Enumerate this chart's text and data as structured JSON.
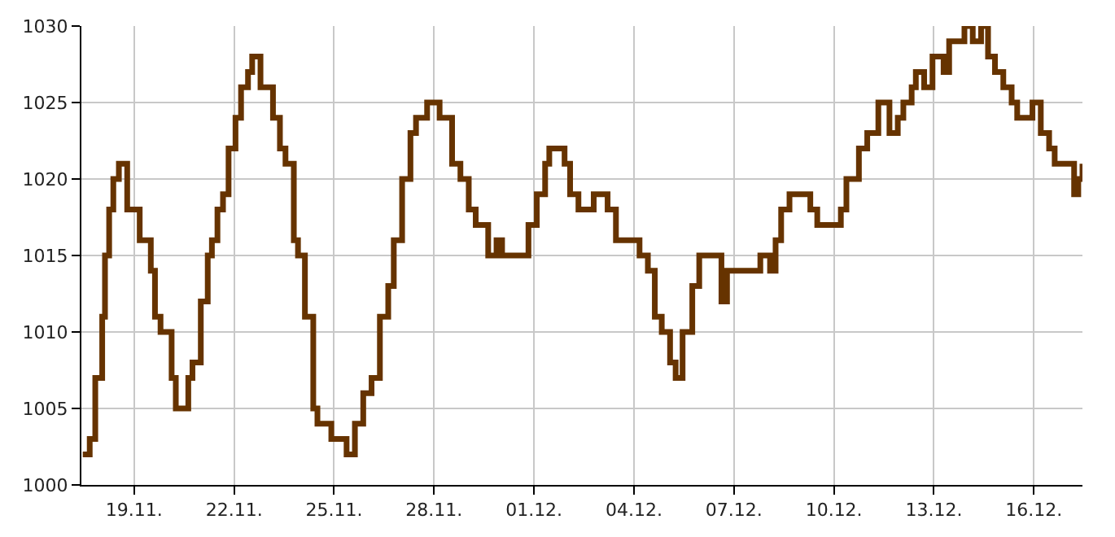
{
  "chart_data": {
    "type": "step",
    "color": "#663300",
    "grid": true,
    "marker": "none",
    "line_style": "solid",
    "x": [
      "--11-17T11:00",
      "--11-17T16:00",
      "--11-17T20:00",
      "--11-18T01:00",
      "--11-18T03:00",
      "--11-18T06:00",
      "--11-18T09:00",
      "--11-18T13:00",
      "--11-18T19:00",
      "--11-19T00:00",
      "--11-19T04:00",
      "--11-19T12:00",
      "--11-19T15:00",
      "--11-19T19:00",
      "--11-19T23:00",
      "--11-20T03:00",
      "--11-20T06:00",
      "--11-20T10:00",
      "--11-20T15:00",
      "--11-20T18:00",
      "--11-21T00:00",
      "--11-21T05:00",
      "--11-21T08:00",
      "--11-21T12:00",
      "--11-21T16:00",
      "--11-21T20:00",
      "--11-22T01:00",
      "--11-22T05:00",
      "--11-22T10:00",
      "--11-22T13:00",
      "--11-22T19:00",
      "--11-22T23:00",
      "--11-23T04:00",
      "--11-23T09:00",
      "--11-23T13:00",
      "--11-23T19:00",
      "--11-23T22:00",
      "--11-24T03:00",
      "--11-24T09:00",
      "--11-24T12:00",
      "--11-24T22:00",
      "--11-25T04:00",
      "--11-25T09:00",
      "--11-25T15:00",
      "--11-25T18:00",
      "--11-25T21:00",
      "--11-26T03:00",
      "--11-26T09:00",
      "--11-26T15:00",
      "--11-26T19:00",
      "--11-27T01:00",
      "--11-27T07:00",
      "--11-27T11:00",
      "--11-27T19:00",
      "--11-28T02:00",
      "--11-28T04:00",
      "--11-28T10:00",
      "--11-28T13:00",
      "--11-28T19:00",
      "--11-29T01:00",
      "--11-29T06:00",
      "--11-29T12:00",
      "--11-29T15:00",
      "--11-29T21:00",
      "--11-30T01:00",
      "--11-30T11:00",
      "--11-30T17:00",
      "--11-30T20:00",
      "--12-01T02:00",
      "--12-01T08:00",
      "--12-01T11:00",
      "--12-01T22:00",
      "--12-02T02:00",
      "--12-02T08:00",
      "--12-02T16:00",
      "--12-02T19:00",
      "--12-03T04:00",
      "--12-03T05:00",
      "--12-03T11:00",
      "--12-03T19:00",
      "--12-04T04:00",
      "--12-04T10:00",
      "--12-04T15:00",
      "--12-04T20:00",
      "--12-05T02:00",
      "--12-05T06:00",
      "--12-05T11:00",
      "--12-05T18:00",
      "--12-05T23:00",
      "--12-06T09:00",
      "--12-06T15:00",
      "--12-06T19:00",
      "--12-07T11:00",
      "--12-07T19:00",
      "--12-08T02:00",
      "--12-08T06:00",
      "--12-08T10:00",
      "--12-08T16:00",
      "--12-08T22:00",
      "--12-09T07:00",
      "--12-09T12:00",
      "--12-10T01:00",
      "--12-10T05:00",
      "--12-10T09:00",
      "--12-10T15:00",
      "--12-10T18:00",
      "--12-11T00:00",
      "--12-11T08:00",
      "--12-11T16:00",
      "--12-11T22:00",
      "--12-12T02:00",
      "--12-12T08:00",
      "--12-12T11:00",
      "--12-12T17:00",
      "--12-12T23:00",
      "--12-13T07:00",
      "--12-13T11:00",
      "--12-13T16:00",
      "--12-13T22:00",
      "--12-14T04:00",
      "--12-14T10:00",
      "--12-14T15:00",
      "--12-14T20:00",
      "--12-15T02:00",
      "--12-15T08:00",
      "--12-15T12:00",
      "--12-15T20:00",
      "--12-15T23:00",
      "--12-16T05:00",
      "--12-16T11:00",
      "--12-16T15:00",
      "--12-16T23:00",
      "--12-17T05:00",
      "--12-17T08:00",
      "--12-17T11:00"
    ],
    "values": [
      1002,
      1003,
      1007,
      1011,
      1015,
      1018,
      1020,
      1021,
      1018,
      1018,
      1016,
      1014,
      1011,
      1010,
      1010,
      1007,
      1005,
      1005,
      1007,
      1008,
      1012,
      1015,
      1016,
      1018,
      1019,
      1022,
      1024,
      1026,
      1027,
      1028,
      1026,
      1026,
      1024,
      1022,
      1021,
      1016,
      1015,
      1011,
      1005,
      1004,
      1003,
      1003,
      1002,
      1004,
      1004,
      1006,
      1007,
      1011,
      1013,
      1016,
      1020,
      1023,
      1024,
      1025,
      1025,
      1024,
      1024,
      1021,
      1020,
      1018,
      1017,
      1017,
      1015,
      1016,
      1015,
      1015,
      1015,
      1017,
      1019,
      1021,
      1022,
      1021,
      1019,
      1018,
      1018,
      1019,
      1019,
      1018,
      1016,
      1016,
      1015,
      1014,
      1011,
      1010,
      1008,
      1007,
      1010,
      1013,
      1015,
      1015,
      1012,
      1014,
      1014,
      1015,
      1014,
      1016,
      1018,
      1019,
      1019,
      1018,
      1017,
      1017,
      1018,
      1020,
      1020,
      1022,
      1023,
      1025,
      1023,
      1024,
      1025,
      1026,
      1027,
      1026,
      1028,
      1027,
      1029,
      1029,
      1030,
      1029,
      1030,
      1028,
      1027,
      1026,
      1025,
      1024,
      1024,
      1025,
      1023,
      1022,
      1021,
      1021,
      1019,
      1020,
      1021
    ],
    "xlim": [
      "--11-17T10:00",
      "--12-17T11:00"
    ],
    "xticks": [
      {
        "value": "--11-19",
        "label": "19.11."
      },
      {
        "value": "--11-22",
        "label": "22.11."
      },
      {
        "value": "--11-25",
        "label": "25.11."
      },
      {
        "value": "--11-28",
        "label": "28.11."
      },
      {
        "value": "--12-01",
        "label": "01.12."
      },
      {
        "value": "--12-04",
        "label": "04.12."
      },
      {
        "value": "--12-07",
        "label": "07.12."
      },
      {
        "value": "--12-10",
        "label": "10.12."
      },
      {
        "value": "--12-13",
        "label": "13.12."
      },
      {
        "value": "--12-16",
        "label": "16.12."
      }
    ],
    "ylim": [
      1000,
      1030
    ],
    "yticks": [
      1000,
      1005,
      1010,
      1015,
      1020,
      1025,
      1030
    ]
  }
}
